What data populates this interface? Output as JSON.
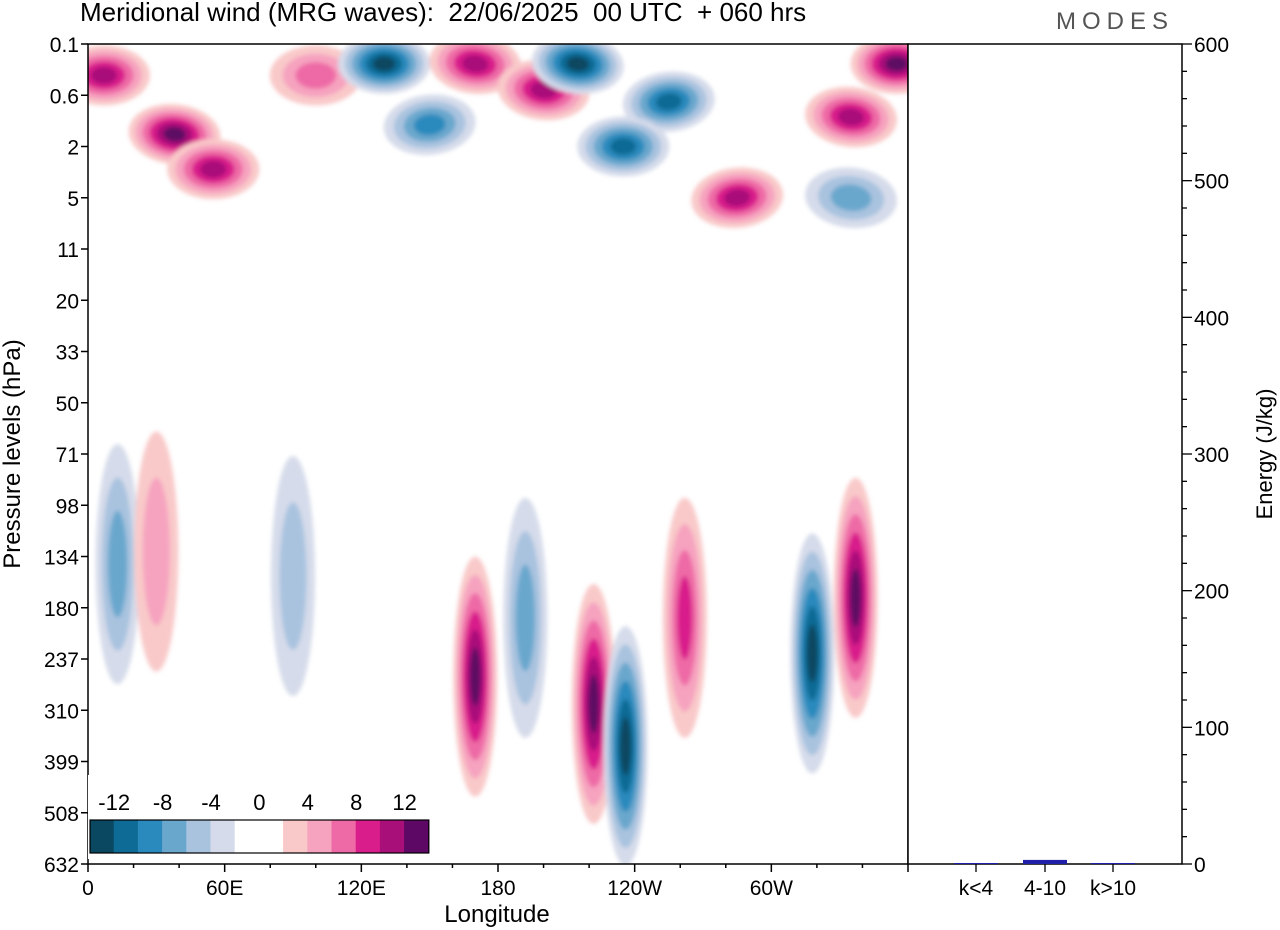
{
  "title": "Meridional wind (MRG waves):  22/06/2025  00 UTC  + 060 hrs",
  "logo": "MODES",
  "colors": {
    "neg": [
      "#0a4760",
      "#0e6b95",
      "#2a8abd",
      "#6aa7cd",
      "#a9c3df",
      "#d5dbea"
    ],
    "zero": "#ffffff",
    "pos": [
      "#f9c9c9",
      "#f6a3bf",
      "#ee6aa6",
      "#d91e8b",
      "#a90f79",
      "#5d0864"
    ],
    "bar": "#1f1fa8"
  },
  "chart_data": [
    {
      "type": "heatmap",
      "variable": "meridional wind",
      "xlabel": "Longitude",
      "ylabel": "Pressure levels (hPa)",
      "x_ticks": [
        "0",
        "60E",
        "120E",
        "180",
        "120W",
        "60W"
      ],
      "y_ticks": [
        "0.1",
        "0.6",
        "2",
        "5",
        "11",
        "20",
        "33",
        "50",
        "71",
        "98",
        "134",
        "180",
        "237",
        "310",
        "399",
        "508",
        "632"
      ],
      "xlim": [
        0,
        360
      ],
      "colorbar": {
        "labels": [
          "-12",
          "-8",
          "-4",
          "0",
          "4",
          "8",
          "12"
        ],
        "levels": [
          -14,
          -12,
          -10,
          -8,
          -6,
          -4,
          -2,
          2,
          4,
          6,
          8,
          10,
          12,
          14
        ]
      },
      "features": [
        {
          "lon": 7,
          "level": "0.3",
          "value": 12
        },
        {
          "lon": 38,
          "level": "1.5",
          "value": 14
        },
        {
          "lon": 55,
          "level": "3",
          "value": 12
        },
        {
          "lon": 100,
          "level": "0.3",
          "value": 8
        },
        {
          "lon": 130,
          "level": "0.2",
          "value": -14
        },
        {
          "lon": 150,
          "level": "1.2",
          "value": -10
        },
        {
          "lon": 170,
          "level": "0.2",
          "value": 12
        },
        {
          "lon": 200,
          "level": "0.5",
          "value": 12
        },
        {
          "lon": 215,
          "level": "0.2",
          "value": -14
        },
        {
          "lon": 255,
          "level": "0.7",
          "value": -12
        },
        {
          "lon": 235,
          "level": "2",
          "value": -12
        },
        {
          "lon": 285,
          "level": "5",
          "value": 12
        },
        {
          "lon": 335,
          "level": "1",
          "value": 12
        },
        {
          "lon": 355,
          "level": "0.2",
          "value": 14
        },
        {
          "lon": 335,
          "level": "5",
          "value": -8
        },
        {
          "lon": 170,
          "level": "260",
          "value": 14
        },
        {
          "lon": 192,
          "level": "190",
          "value": -8
        },
        {
          "lon": 222,
          "level": "300",
          "value": 14
        },
        {
          "lon": 236,
          "level": "370",
          "value": -14
        },
        {
          "lon": 262,
          "level": "190",
          "value": 10
        },
        {
          "lon": 318,
          "level": "230",
          "value": -14
        },
        {
          "lon": 337,
          "level": "170",
          "value": 14
        },
        {
          "lon": 13,
          "level": "140",
          "value": -6
        },
        {
          "lon": 30,
          "level": "130",
          "value": 4
        },
        {
          "lon": 90,
          "level": "150",
          "value": -4
        }
      ]
    },
    {
      "type": "bar",
      "categories": [
        "k<4",
        "4-10",
        "k>10"
      ],
      "values": [
        0.3,
        3.0,
        0.3
      ],
      "ylabel": "Energy (J/kg)",
      "ylim": [
        0,
        600
      ],
      "y_ticks": [
        "0",
        "100",
        "200",
        "300",
        "400",
        "500",
        "600"
      ]
    }
  ]
}
